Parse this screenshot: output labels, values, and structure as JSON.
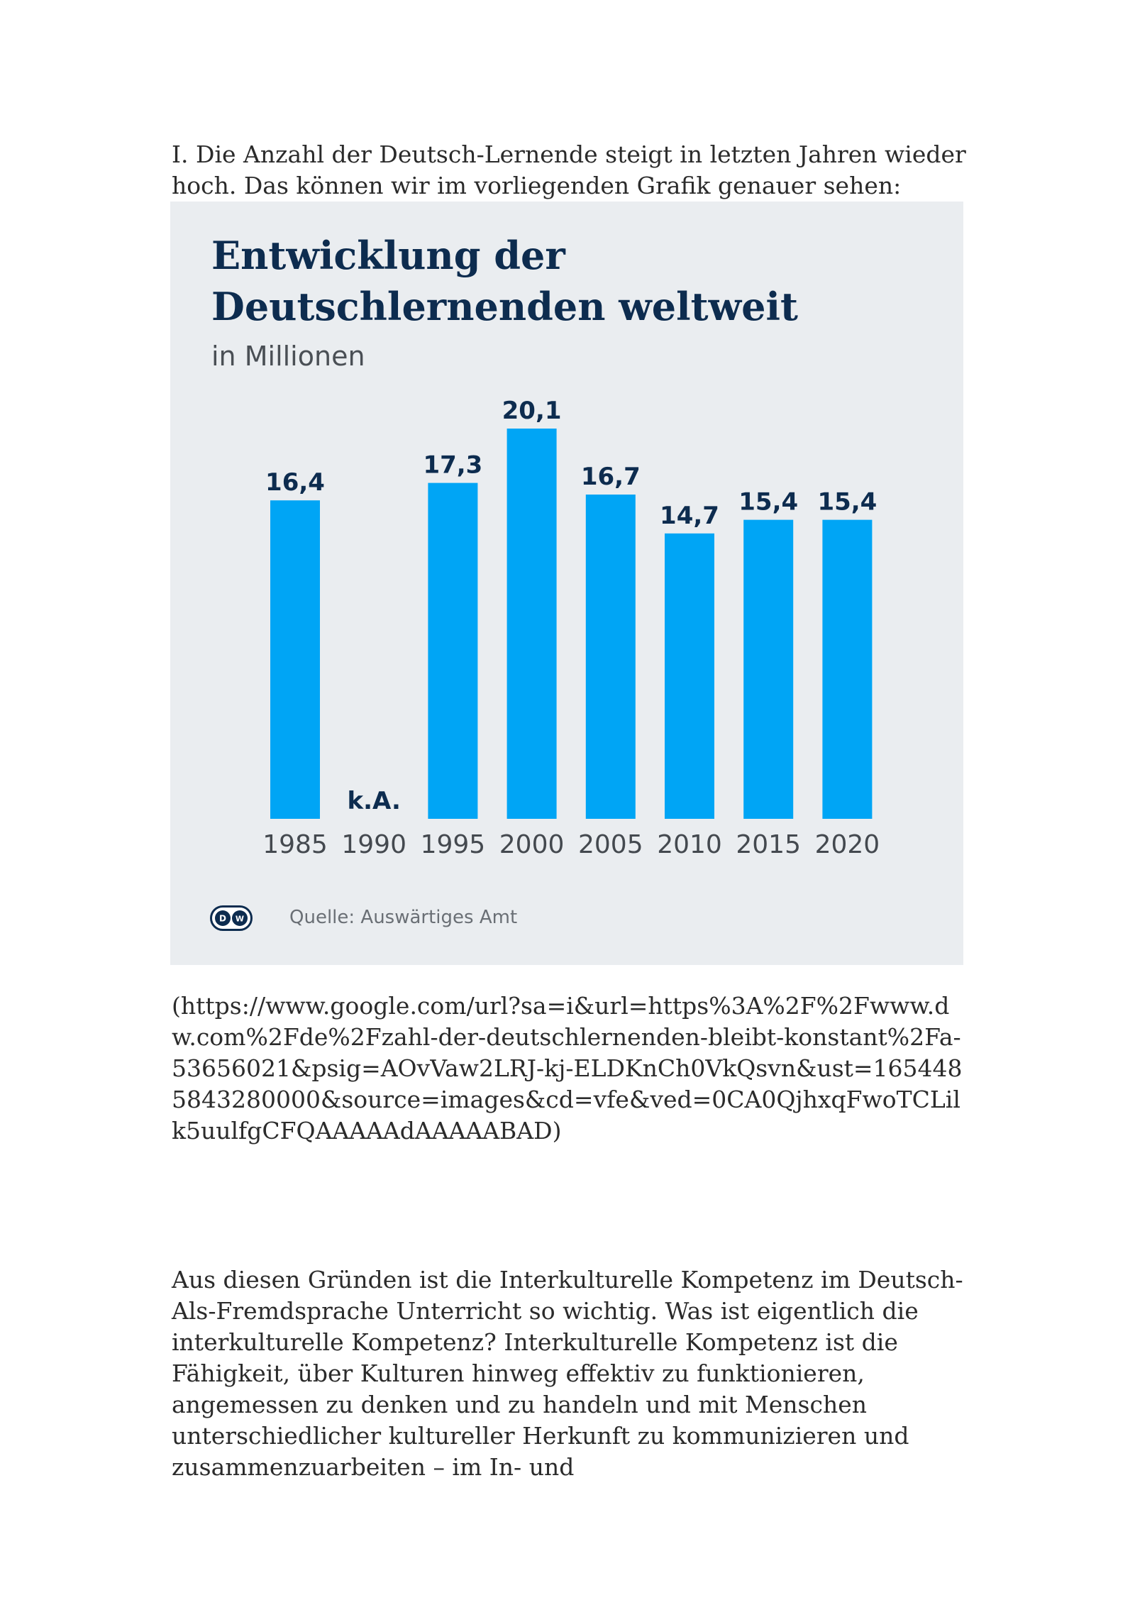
{
  "document": {
    "intro_text": "I. Die Anzahl der Deutsch-Lernende steigt in letzten Jahren wieder hoch. Das können wir im vorliegenden Grafik genauer sehen:",
    "url_text": "(https://www.google.com/url?sa=i&url=https%3A%2F%2Fwww.dw.com%2Fde%2Fzahl-der-deutschlernenden-bleibt-konstant%2Fa-53656021&psig=AOvVaw2LRJ-kj-ELDKnCh0VkQsvn&ust=1654485843280000&source=images&cd=vfe&ved=0CA0QjhxqFwoTCLilk5uulfgCFQAAAAAdAAAAABAD)",
    "body_text": "Aus diesen Gründen ist die Interkulturelle Kompetenz im Deutsch-Als-Fremdsprache Unterricht so wichtig. Was ist eigentlich die interkulturelle Kompetenz? Interkulturelle Kompetenz ist die Fähigkeit, über Kulturen hinweg effektiv zu funktionieren, angemessen zu denken und zu handeln und mit Menschen unterschiedlicher kultureller Herkunft zu kommunizieren und zusammenzuarbeiten – im In- und"
  },
  "figure": {
    "logo_text": "DW",
    "source": "Quelle: Auswärtiges Amt"
  },
  "colors": {
    "bar": "#00a5f5",
    "title": "#0d2c4f",
    "figure_background": "#eaedf0"
  },
  "chart_data": {
    "type": "bar",
    "title": "Entwicklung der Deutschlernenden weltweit",
    "subtitle": "in Millionen",
    "categories": [
      "1985",
      "1990",
      "1995",
      "2000",
      "2005",
      "2010",
      "2015",
      "2020"
    ],
    "values": [
      16.4,
      null,
      17.3,
      20.1,
      16.7,
      14.7,
      15.4,
      15.4
    ],
    "labels": [
      "16,4",
      "k.A.",
      "17,3",
      "20,1",
      "16,7",
      "14,7",
      "15,4",
      "15,4"
    ],
    "ylim": [
      0,
      20.1
    ],
    "grid": false,
    "legend": "none"
  }
}
